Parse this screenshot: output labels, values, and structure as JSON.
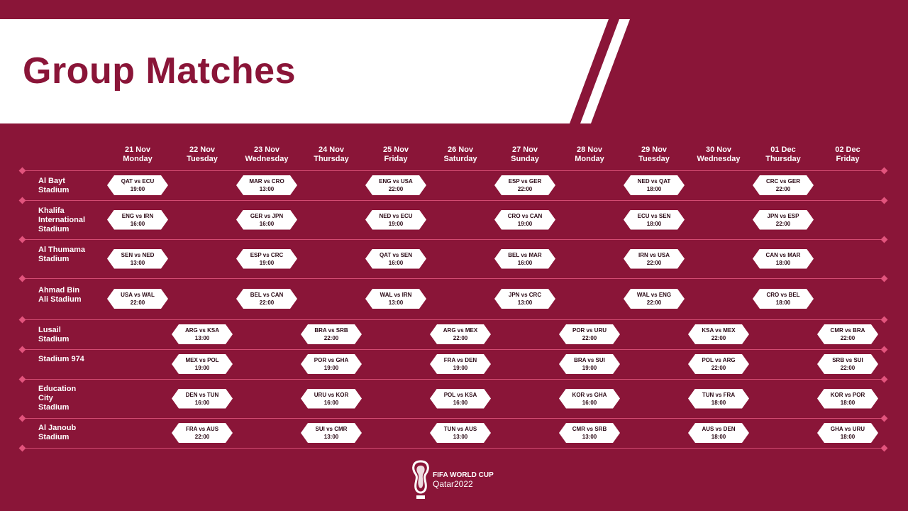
{
  "title": "Group Matches",
  "colors": {
    "background": "#8a1538",
    "banner": "#ffffff",
    "accent": "#e2547d"
  },
  "logo": {
    "line1": "FIFA WORLD CUP",
    "line2": "Qatar2022",
    "icon": "world-cup-trophy-emblem-icon"
  },
  "days": [
    {
      "date": "21 Nov",
      "weekday": "Monday"
    },
    {
      "date": "22 Nov",
      "weekday": "Tuesday"
    },
    {
      "date": "23 Nov",
      "weekday": "Wednesday"
    },
    {
      "date": "24 Nov",
      "weekday": "Thursday"
    },
    {
      "date": "25 Nov",
      "weekday": "Friday"
    },
    {
      "date": "26 Nov",
      "weekday": "Saturday"
    },
    {
      "date": "27 Nov",
      "weekday": "Sunday"
    },
    {
      "date": "28 Nov",
      "weekday": "Monday"
    },
    {
      "date": "29 Nov",
      "weekday": "Tuesday"
    },
    {
      "date": "30 Nov",
      "weekday": "Wednesday"
    },
    {
      "date": "01 Dec",
      "weekday": "Thursday"
    },
    {
      "date": "02 Dec",
      "weekday": "Friday"
    }
  ],
  "stadiums": [
    {
      "name": "Al Bayt Stadium",
      "lines": [
        "Al Bayt",
        "Stadium"
      ],
      "matches": [
        {
          "day": 0,
          "teams": "QAT vs ECU",
          "time": "19:00"
        },
        {
          "day": 2,
          "teams": "MAR vs CRO",
          "time": "13:00"
        },
        {
          "day": 4,
          "teams": "ENG vs USA",
          "time": "22:00"
        },
        {
          "day": 6,
          "teams": "ESP vs GER",
          "time": "22:00"
        },
        {
          "day": 8,
          "teams": "NED vs QAT",
          "time": "18:00"
        },
        {
          "day": 10,
          "teams": "CRC vs GER",
          "time": "22:00"
        }
      ]
    },
    {
      "name": "Khalifa International Stadium",
      "lines": [
        "Khalifa",
        "International",
        "Stadium"
      ],
      "matches": [
        {
          "day": 0,
          "teams": "ENG vs IRN",
          "time": "16:00"
        },
        {
          "day": 2,
          "teams": "GER vs JPN",
          "time": "16:00"
        },
        {
          "day": 4,
          "teams": "NED vs ECU",
          "time": "19:00"
        },
        {
          "day": 6,
          "teams": "CRO vs CAN",
          "time": "19:00"
        },
        {
          "day": 8,
          "teams": "ECU vs SEN",
          "time": "18:00"
        },
        {
          "day": 10,
          "teams": "JPN vs ESP",
          "time": "22:00"
        }
      ]
    },
    {
      "name": "Al Thumama Stadium",
      "lines": [
        "Al Thumama",
        "Stadium"
      ],
      "matches": [
        {
          "day": 0,
          "teams": "SEN vs NED",
          "time": "13:00"
        },
        {
          "day": 2,
          "teams": "ESP vs CRC",
          "time": "19:00"
        },
        {
          "day": 4,
          "teams": "QAT vs SEN",
          "time": "16:00"
        },
        {
          "day": 6,
          "teams": "BEL vs MAR",
          "time": "16:00"
        },
        {
          "day": 8,
          "teams": "IRN vs USA",
          "time": "22:00"
        },
        {
          "day": 10,
          "teams": "CAN vs MAR",
          "time": "18:00"
        }
      ]
    },
    {
      "name": "Ahmad Bin Ali Stadium",
      "lines": [
        "Ahmad Bin",
        "Ali Stadium"
      ],
      "matches": [
        {
          "day": 0,
          "teams": "USA vs WAL",
          "time": "22:00"
        },
        {
          "day": 2,
          "teams": "BEL vs CAN",
          "time": "22:00"
        },
        {
          "day": 4,
          "teams": "WAL vs IRN",
          "time": "13:00"
        },
        {
          "day": 6,
          "teams": "JPN vs CRC",
          "time": "13:00"
        },
        {
          "day": 8,
          "teams": "WAL vs ENG",
          "time": "22:00"
        },
        {
          "day": 10,
          "teams": "CRO vs BEL",
          "time": "18:00"
        }
      ]
    },
    {
      "name": "Lusail Stadium",
      "lines": [
        "Lusail",
        "Stadium"
      ],
      "matches": [
        {
          "day": 1,
          "teams": "ARG vs KSA",
          "time": "13:00"
        },
        {
          "day": 3,
          "teams": "BRA vs SRB",
          "time": "22:00"
        },
        {
          "day": 5,
          "teams": "ARG vs MEX",
          "time": "22:00"
        },
        {
          "day": 7,
          "teams": "POR vs URU",
          "time": "22:00"
        },
        {
          "day": 9,
          "teams": "KSA vs MEX",
          "time": "22:00"
        },
        {
          "day": 11,
          "teams": "CMR vs BRA",
          "time": "22:00"
        }
      ]
    },
    {
      "name": "Stadium 974",
      "lines": [
        "Stadium 974"
      ],
      "matches": [
        {
          "day": 1,
          "teams": "MEX vs POL",
          "time": "19:00"
        },
        {
          "day": 3,
          "teams": "POR vs GHA",
          "time": "19:00"
        },
        {
          "day": 5,
          "teams": "FRA vs DEN",
          "time": "19:00"
        },
        {
          "day": 7,
          "teams": "BRA vs SUI",
          "time": "19:00"
        },
        {
          "day": 9,
          "teams": "POL vs ARG",
          "time": "22:00"
        },
        {
          "day": 11,
          "teams": "SRB vs SUI",
          "time": "22:00"
        }
      ]
    },
    {
      "name": "Education City Stadium",
      "lines": [
        "Education",
        "City",
        "Stadium"
      ],
      "matches": [
        {
          "day": 1,
          "teams": "DEN vs TUN",
          "time": "16:00"
        },
        {
          "day": 3,
          "teams": "URU vs KOR",
          "time": "16:00"
        },
        {
          "day": 5,
          "teams": "POL vs KSA",
          "time": "16:00"
        },
        {
          "day": 7,
          "teams": "KOR vs GHA",
          "time": "16:00"
        },
        {
          "day": 9,
          "teams": "TUN vs FRA",
          "time": "18:00"
        },
        {
          "day": 11,
          "teams": "KOR vs POR",
          "time": "18:00"
        }
      ]
    },
    {
      "name": "Al Janoub Stadium",
      "lines": [
        "Al Janoub",
        "Stadium"
      ],
      "matches": [
        {
          "day": 1,
          "teams": "FRA vs AUS",
          "time": "22:00"
        },
        {
          "day": 3,
          "teams": "SUI vs CMR",
          "time": "13:00"
        },
        {
          "day": 5,
          "teams": "TUN vs AUS",
          "time": "13:00"
        },
        {
          "day": 7,
          "teams": "CMR vs SRB",
          "time": "13:00"
        },
        {
          "day": 9,
          "teams": "AUS vs DEN",
          "time": "18:00"
        },
        {
          "day": 11,
          "teams": "GHA vs URU",
          "time": "18:00"
        }
      ]
    }
  ]
}
